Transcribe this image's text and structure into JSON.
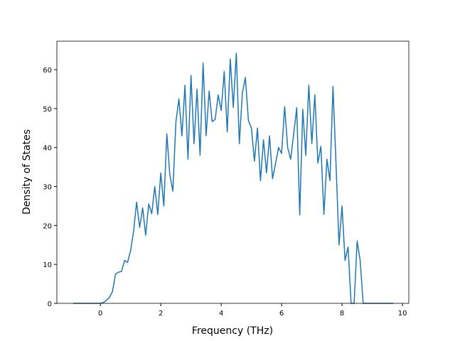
{
  "chart_data": {
    "type": "line",
    "x_label": "Frequency (THz)",
    "y_label": "Density of States",
    "x": [
      -0.9,
      -0.8,
      -0.7,
      -0.6,
      -0.5,
      -0.4,
      -0.3,
      -0.2,
      -0.1,
      0.0,
      0.1,
      0.2,
      0.3,
      0.4,
      0.5,
      0.6,
      0.7,
      0.8,
      0.9,
      1.0,
      1.1,
      1.2,
      1.3,
      1.4,
      1.5,
      1.6,
      1.7,
      1.8,
      1.9,
      2.0,
      2.1,
      2.2,
      2.3,
      2.4,
      2.5,
      2.6,
      2.7,
      2.8,
      2.9,
      3.0,
      3.1,
      3.2,
      3.3,
      3.4,
      3.5,
      3.6,
      3.7,
      3.8,
      3.9,
      4.0,
      4.1,
      4.2,
      4.3,
      4.4,
      4.5,
      4.6,
      4.7,
      4.8,
      4.9,
      5.0,
      5.1,
      5.2,
      5.3,
      5.4,
      5.5,
      5.6,
      5.7,
      5.8,
      5.9,
      6.0,
      6.1,
      6.2,
      6.3,
      6.4,
      6.5,
      6.6,
      6.7,
      6.8,
      6.9,
      7.0,
      7.1,
      7.2,
      7.3,
      7.4,
      7.5,
      7.6,
      7.7,
      7.8,
      7.9,
      8.0,
      8.1,
      8.2,
      8.3,
      8.4,
      8.5,
      8.6,
      8.7,
      8.8,
      8.9,
      9.0,
      9.1,
      9.2,
      9.3,
      9.4,
      9.5,
      9.6,
      9.7
    ],
    "series": [
      {
        "color": "#1f77b4",
        "values": [
          0,
          0,
          0,
          0,
          0,
          0,
          0,
          0,
          0,
          0,
          0.2,
          0.8,
          1.5,
          3,
          7.5,
          8,
          8.2,
          11,
          10.5,
          13.5,
          18.5,
          26,
          19.5,
          24.5,
          17.5,
          25.5,
          23,
          30,
          22.8,
          33.5,
          25,
          43.5,
          33,
          28.8,
          46.5,
          52.5,
          43,
          56,
          37,
          58.5,
          41,
          55,
          38,
          61.7,
          43,
          54.5,
          46.7,
          47.2,
          53.5,
          49.5,
          59.5,
          44,
          62.7,
          50.3,
          64.2,
          41,
          54,
          58,
          47,
          45,
          36.5,
          45,
          31.5,
          42,
          33.5,
          43,
          32,
          36,
          40,
          38.5,
          50.5,
          40,
          37,
          43.5,
          50.2,
          22.7,
          49.8,
          38,
          56,
          41,
          53.5,
          36,
          40.3,
          22.8,
          37,
          31.5,
          55.7,
          36,
          15,
          25,
          11,
          14.5,
          0,
          0,
          16,
          11,
          0,
          0,
          0,
          0,
          0,
          0,
          0,
          0,
          0,
          0,
          0
        ]
      }
    ],
    "xlim": [
      -1.44,
      10.21
    ],
    "ylim": [
      0,
      67.3
    ],
    "xticks": [
      0,
      2,
      4,
      6,
      8,
      10
    ],
    "yticks": [
      0,
      10,
      20,
      30,
      40,
      50,
      60
    ]
  }
}
